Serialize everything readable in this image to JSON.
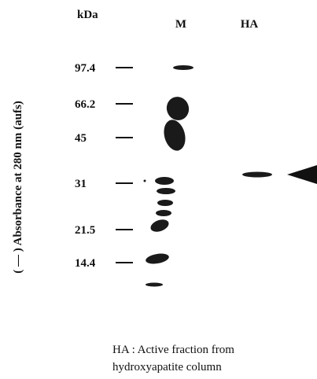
{
  "header": {
    "unit": "kDa",
    "lanes": [
      "M",
      "HA"
    ]
  },
  "markers": [
    "97.4",
    "66.2",
    "45",
    "31",
    "21.5",
    "14.4"
  ],
  "y_axis_label": "( — )  Absorbance at 280 nm (aufs)",
  "caption": [
    "HA : Active fraction from",
    "hydroxyapatite column"
  ]
}
